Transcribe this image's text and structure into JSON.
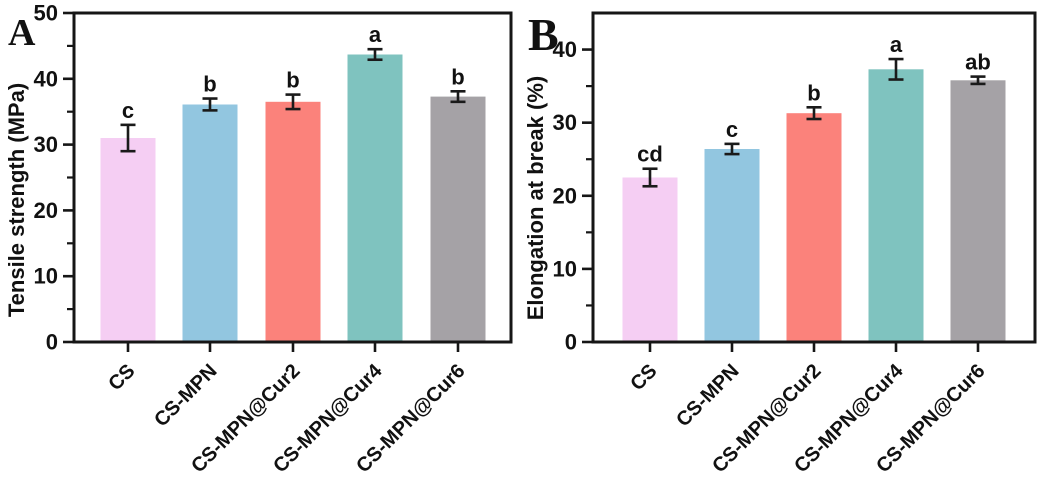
{
  "figure_colors": {
    "background": "#ffffff",
    "axis": "#161616",
    "error_bar": "#1a1a1a",
    "text": "#111111"
  },
  "chart_data": [
    {
      "type": "bar",
      "panel_label": "A",
      "title": "",
      "xlabel": "",
      "ylabel": "Tensile strength (MPa)",
      "categories": [
        "CS",
        "CS-MPN",
        "CS-MPN@Cur2",
        "CS-MPN@Cur4",
        "CS-MPN@Cur6"
      ],
      "values": [
        31.0,
        36.1,
        36.5,
        43.7,
        37.3
      ],
      "errors": [
        2.0,
        0.9,
        1.1,
        0.8,
        0.8
      ],
      "sig_letters": [
        "c",
        "b",
        "b",
        "a",
        "b"
      ],
      "bar_colors": [
        "#f5cef3",
        "#92c6e0",
        "#fb827b",
        "#7fc3bf",
        "#a5a2a6"
      ],
      "ylim": [
        0,
        50
      ],
      "ytick_major": 10,
      "ytick_minor": 5,
      "grid": false,
      "legend": "none"
    },
    {
      "type": "bar",
      "panel_label": "B",
      "title": "",
      "xlabel": "",
      "ylabel": "Elongation at break (%)",
      "categories": [
        "CS",
        "CS-MPN",
        "CS-MPN@Cur2",
        "CS-MPN@Cur4",
        "CS-MPN@Cur6"
      ],
      "values": [
        22.5,
        26.4,
        31.3,
        37.3,
        35.8
      ],
      "errors": [
        1.2,
        0.7,
        0.8,
        1.4,
        0.5
      ],
      "sig_letters": [
        "cd",
        "c",
        "b",
        "a",
        "ab"
      ],
      "bar_colors": [
        "#f5cef3",
        "#92c6e0",
        "#fb827b",
        "#7fc3bf",
        "#a5a2a6"
      ],
      "ylim": [
        0,
        45
      ],
      "ytick_major": 10,
      "ytick_minor": 5,
      "grid": false,
      "legend": "none"
    }
  ]
}
